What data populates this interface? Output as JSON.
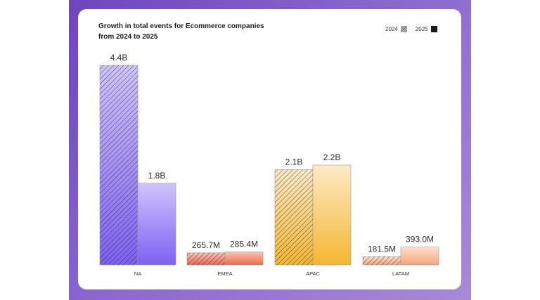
{
  "chart_data": {
    "type": "bar",
    "title": "Growth in total events for Ecommerce companies from 2024 to 2025",
    "categories": [
      "NA",
      "EMEA",
      "APAC",
      "LATAM"
    ],
    "unit": "events (billions)",
    "series": [
      {
        "name": "2024",
        "pattern": "hatched",
        "values": [
          4.4,
          0.2657,
          2.1,
          0.1815
        ],
        "labels": [
          "4.4B",
          "265.7M",
          "2.1B",
          "181.5M"
        ]
      },
      {
        "name": "2025",
        "pattern": "solid",
        "values": [
          1.8,
          0.2854,
          2.2,
          0.393
        ],
        "labels": [
          "1.8B",
          "285.4M",
          "2.2B",
          "393.0M"
        ]
      }
    ],
    "category_colors": {
      "NA": [
        "#cfc4fb",
        "#7d60f3"
      ],
      "EMEA": [
        "#fbc2b2",
        "#ee6a52"
      ],
      "APAC": [
        "#fdeac6",
        "#f4b733"
      ],
      "LATAM": [
        "#fde0cc",
        "#f6a47a"
      ]
    },
    "legend": {
      "position": "top-right",
      "items": [
        "2024",
        "2025"
      ]
    },
    "grid": false,
    "ylim": [
      0,
      4.4
    ]
  }
}
